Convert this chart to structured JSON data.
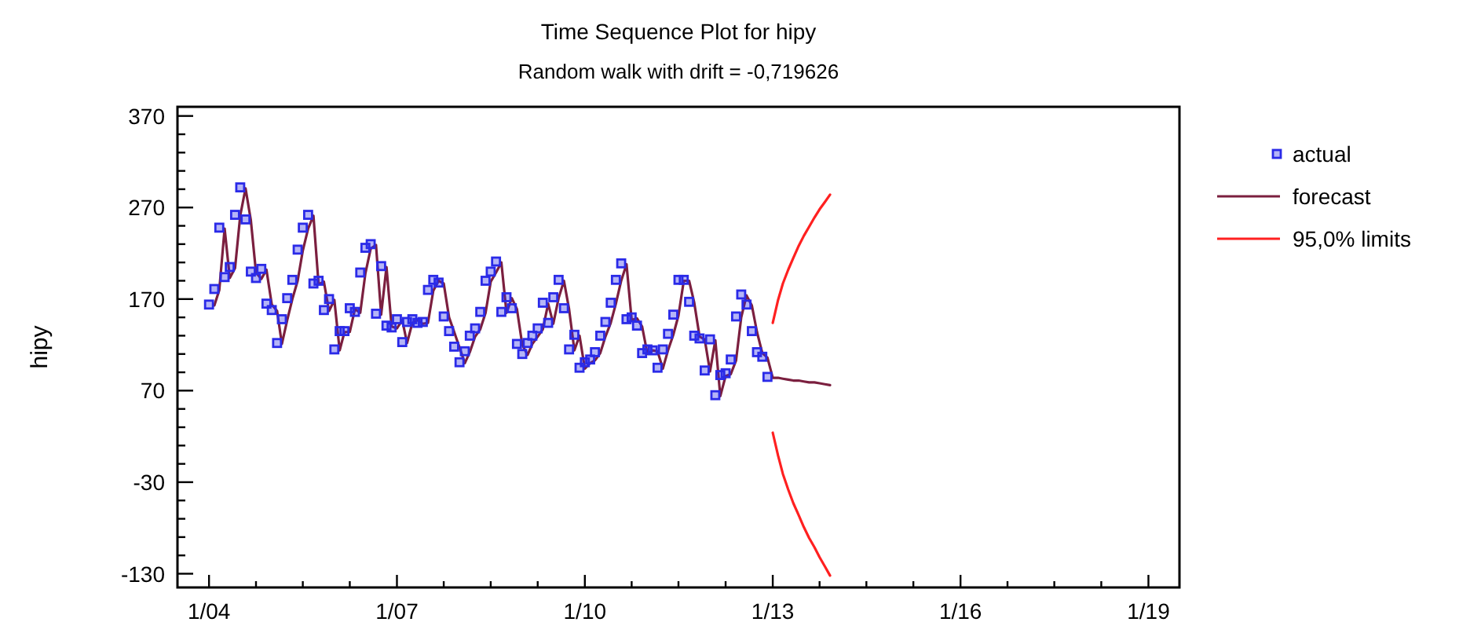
{
  "chart_data": {
    "type": "line",
    "title": "Time Sequence Plot for hipy",
    "subtitle": "Random walk with drift = -0,719626",
    "ylabel": "hipy",
    "xlim": [
      "2003-07",
      "2019-07"
    ],
    "ylim": [
      -145,
      380
    ],
    "xticks": [
      {
        "value": "2004-01",
        "label": "1/04"
      },
      {
        "value": "2004-10",
        "label": null
      },
      {
        "value": "2005-07",
        "label": null
      },
      {
        "value": "2006-04",
        "label": null
      },
      {
        "value": "2007-01",
        "label": "1/07"
      },
      {
        "value": "2007-10",
        "label": null
      },
      {
        "value": "2008-07",
        "label": null
      },
      {
        "value": "2009-04",
        "label": null
      },
      {
        "value": "2010-01",
        "label": "1/10"
      },
      {
        "value": "2010-10",
        "label": null
      },
      {
        "value": "2011-07",
        "label": null
      },
      {
        "value": "2012-04",
        "label": null
      },
      {
        "value": "2013-01",
        "label": "1/13"
      },
      {
        "value": "2013-10",
        "label": null
      },
      {
        "value": "2014-07",
        "label": null
      },
      {
        "value": "2015-04",
        "label": null
      },
      {
        "value": "2016-01",
        "label": "1/16"
      },
      {
        "value": "2016-10",
        "label": null
      },
      {
        "value": "2017-07",
        "label": null
      },
      {
        "value": "2018-04",
        "label": null
      },
      {
        "value": "2019-01",
        "label": "1/19"
      }
    ],
    "yticks": [
      -130,
      {
        "value": -110,
        "label": null
      },
      {
        "value": -90,
        "label": null
      },
      {
        "value": -70,
        "label": null
      },
      {
        "value": -50,
        "label": null
      },
      -30,
      {
        "value": -10,
        "label": null
      },
      {
        "value": 10,
        "label": null
      },
      {
        "value": 30,
        "label": null
      },
      {
        "value": 50,
        "label": null
      },
      70,
      {
        "value": 90,
        "label": null
      },
      {
        "value": 110,
        "label": null
      },
      {
        "value": 130,
        "label": null
      },
      {
        "value": 150,
        "label": null
      },
      170,
      {
        "value": 190,
        "label": null
      },
      {
        "value": 210,
        "label": null
      },
      {
        "value": 230,
        "label": null
      },
      {
        "value": 250,
        "label": null
      },
      270,
      {
        "value": 290,
        "label": null
      },
      {
        "value": 310,
        "label": null
      },
      {
        "value": 330,
        "label": null
      },
      {
        "value": 350,
        "label": null
      },
      370
    ],
    "grid": false,
    "legend": "right",
    "series": [
      {
        "name": "actual",
        "type": "scatter",
        "marker": "square",
        "color": "#2a2ae8",
        "x": [
          "2004-01",
          "2004-02",
          "2004-03",
          "2004-04",
          "2004-05",
          "2004-06",
          "2004-07",
          "2004-08",
          "2004-09",
          "2004-10",
          "2004-11",
          "2004-12",
          "2005-01",
          "2005-02",
          "2005-03",
          "2005-04",
          "2005-05",
          "2005-06",
          "2005-07",
          "2005-08",
          "2005-09",
          "2005-10",
          "2005-11",
          "2005-12",
          "2006-01",
          "2006-02",
          "2006-03",
          "2006-04",
          "2006-05",
          "2006-06",
          "2006-07",
          "2006-08",
          "2006-09",
          "2006-10",
          "2006-11",
          "2006-12",
          "2007-01",
          "2007-02",
          "2007-03",
          "2007-04",
          "2007-05",
          "2007-06",
          "2007-07",
          "2007-08",
          "2007-09",
          "2007-10",
          "2007-11",
          "2007-12",
          "2008-01",
          "2008-02",
          "2008-03",
          "2008-04",
          "2008-05",
          "2008-06",
          "2008-07",
          "2008-08",
          "2008-09",
          "2008-10",
          "2008-11",
          "2008-12",
          "2009-01",
          "2009-02",
          "2009-03",
          "2009-04",
          "2009-05",
          "2009-06",
          "2009-07",
          "2009-08",
          "2009-09",
          "2009-10",
          "2009-11",
          "2009-12",
          "2010-01",
          "2010-02",
          "2010-03",
          "2010-04",
          "2010-05",
          "2010-06",
          "2010-07",
          "2010-08",
          "2010-09",
          "2010-10",
          "2010-11",
          "2010-12",
          "2011-01",
          "2011-02",
          "2011-03",
          "2011-04",
          "2011-05",
          "2011-06",
          "2011-07",
          "2011-08",
          "2011-09",
          "2011-10",
          "2011-11",
          "2011-12",
          "2012-01",
          "2012-02",
          "2012-03",
          "2012-04",
          "2012-05",
          "2012-06",
          "2012-07",
          "2012-08",
          "2012-09",
          "2012-10",
          "2012-11",
          "2012-12"
        ],
        "values": [
          164,
          181,
          248,
          194,
          205,
          262,
          292,
          257,
          200,
          193,
          203,
          165,
          158,
          122,
          148,
          171,
          191,
          224,
          248,
          262,
          187,
          190,
          158,
          170,
          115,
          135,
          135,
          160,
          156,
          199,
          226,
          230,
          154,
          206,
          141,
          139,
          148,
          123,
          145,
          148,
          144,
          145,
          180,
          191,
          188,
          151,
          135,
          118,
          101,
          113,
          130,
          138,
          156,
          190,
          200,
          211,
          156,
          172,
          160,
          121,
          110,
          122,
          130,
          138,
          166,
          144,
          172,
          191,
          160,
          115,
          131,
          95,
          101,
          104,
          112,
          130,
          145,
          166,
          191,
          209,
          148,
          150,
          141,
          111,
          115,
          114,
          95,
          115,
          132,
          153,
          191,
          191,
          167,
          130,
          127,
          92,
          126,
          65,
          87,
          89,
          104,
          151,
          175,
          164,
          135,
          112,
          107,
          85
        ]
      },
      {
        "name": "forecast",
        "color": "#7b1f3f",
        "x": [
          "2004-02",
          "2004-03",
          "2004-04",
          "2004-05",
          "2004-06",
          "2004-07",
          "2004-08",
          "2004-09",
          "2004-10",
          "2004-11",
          "2004-12",
          "2005-01",
          "2005-02",
          "2005-03",
          "2005-04",
          "2005-05",
          "2005-06",
          "2005-07",
          "2005-08",
          "2005-09",
          "2005-10",
          "2005-11",
          "2005-12",
          "2006-01",
          "2006-02",
          "2006-03",
          "2006-04",
          "2006-05",
          "2006-06",
          "2006-07",
          "2006-08",
          "2006-09",
          "2006-10",
          "2006-11",
          "2006-12",
          "2007-01",
          "2007-02",
          "2007-03",
          "2007-04",
          "2007-05",
          "2007-06",
          "2007-07",
          "2007-08",
          "2007-09",
          "2007-10",
          "2007-11",
          "2007-12",
          "2008-01",
          "2008-02",
          "2008-03",
          "2008-04",
          "2008-05",
          "2008-06",
          "2008-07",
          "2008-08",
          "2008-09",
          "2008-10",
          "2008-11",
          "2008-12",
          "2009-01",
          "2009-02",
          "2009-03",
          "2009-04",
          "2009-05",
          "2009-06",
          "2009-07",
          "2009-08",
          "2009-09",
          "2009-10",
          "2009-11",
          "2009-12",
          "2010-01",
          "2010-02",
          "2010-03",
          "2010-04",
          "2010-05",
          "2010-06",
          "2010-07",
          "2010-08",
          "2010-09",
          "2010-10",
          "2010-11",
          "2010-12",
          "2011-01",
          "2011-02",
          "2011-03",
          "2011-04",
          "2011-05",
          "2011-06",
          "2011-07",
          "2011-08",
          "2011-09",
          "2011-10",
          "2011-11",
          "2011-12",
          "2012-01",
          "2012-02",
          "2012-03",
          "2012-04",
          "2012-05",
          "2012-06",
          "2012-07",
          "2012-08",
          "2012-09",
          "2012-10",
          "2012-11",
          "2012-12",
          "2013-01",
          "2013-02",
          "2013-03",
          "2013-04",
          "2013-05",
          "2013-06",
          "2013-07",
          "2013-08",
          "2013-09",
          "2013-10",
          "2013-11",
          "2013-12"
        ],
        "values": [
          163,
          180,
          247,
          193,
          204,
          261,
          291,
          256,
          199,
          192,
          202,
          164,
          157,
          121,
          147,
          170,
          190,
          223,
          247,
          261,
          186,
          189,
          157,
          169,
          114,
          134,
          134,
          159,
          155,
          198,
          225,
          229,
          153,
          205,
          140,
          138,
          147,
          122,
          144,
          147,
          143,
          144,
          179,
          190,
          187,
          150,
          134,
          117,
          100,
          112,
          129,
          137,
          155,
          189,
          199,
          210,
          155,
          171,
          159,
          120,
          109,
          121,
          129,
          137,
          165,
          143,
          171,
          190,
          159,
          114,
          130,
          94,
          100,
          103,
          111,
          129,
          144,
          165,
          190,
          208,
          147,
          149,
          140,
          110,
          114,
          113,
          94,
          114,
          131,
          152,
          190,
          190,
          166,
          129,
          126,
          91,
          125,
          64,
          86,
          88,
          103,
          150,
          174,
          163,
          134,
          111,
          106,
          84,
          84,
          83,
          82,
          81,
          81,
          80,
          79,
          79,
          78,
          77,
          76
        ]
      },
      {
        "name": "95,0% limits",
        "color": "#ff2020",
        "x": [
          "2013-01",
          "2013-02",
          "2013-03",
          "2013-04",
          "2013-05",
          "2013-06",
          "2013-07",
          "2013-08",
          "2013-09",
          "2013-10",
          "2013-11",
          "2013-12"
        ],
        "values": [
          144,
          169,
          187,
          202,
          215,
          228,
          239,
          249,
          259,
          268,
          276,
          284
        ]
      },
      {
        "color": "#ff2020",
        "x": [
          "2013-01",
          "2013-02",
          "2013-03",
          "2013-04",
          "2013-05",
          "2013-06",
          "2013-07",
          "2013-08",
          "2013-09",
          "2013-10",
          "2013-11",
          "2013-12"
        ],
        "values": [
          24,
          -1,
          -21,
          -38,
          -53,
          -66,
          -79,
          -91,
          -101,
          -112,
          -122,
          -132
        ]
      }
    ]
  }
}
